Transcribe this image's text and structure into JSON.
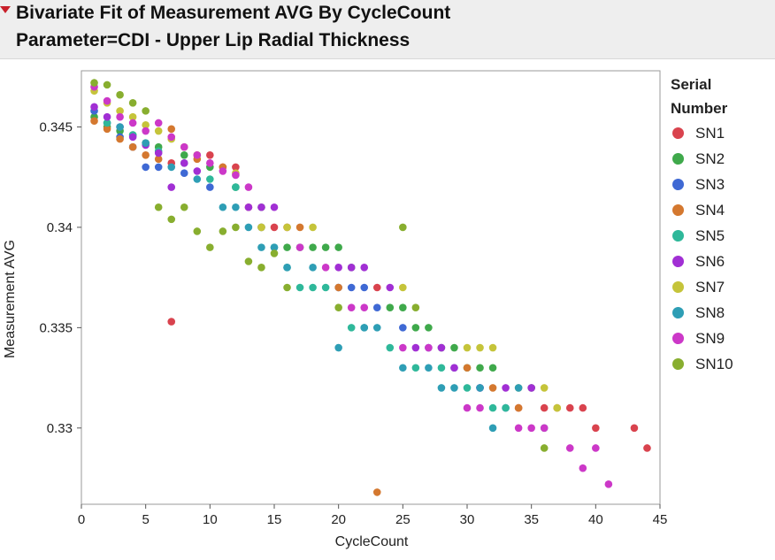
{
  "header": {
    "line1": "Bivariate Fit of Measurement AVG By CycleCount",
    "line2": "Parameter=CDI - Upper Lip Radial Thickness"
  },
  "legend": {
    "title_line1": "Serial",
    "title_line2": "Number",
    "placement": "right"
  },
  "chart_data": {
    "type": "scatter",
    "title": "Bivariate Fit of Measurement AVG By CycleCount",
    "subtitle": "Parameter=CDI - Upper Lip Radial Thickness",
    "xlabel": "CycleCount",
    "ylabel": "Measurement AVG",
    "xlim": [
      0,
      45
    ],
    "ylim": [
      0.3262,
      0.3478
    ],
    "xticks": [
      0,
      5,
      10,
      15,
      20,
      25,
      30,
      35,
      40,
      45
    ],
    "yticks": [
      0.33,
      0.335,
      0.34,
      0.345
    ],
    "ytick_labels": [
      "0.33",
      "0.335",
      "0.34",
      "0.345"
    ],
    "grid": false,
    "legend_placement": "right",
    "series": [
      {
        "name": "SN1",
        "color": "#d9434e",
        "points": [
          [
            7,
            0.3353
          ],
          [
            7,
            0.3432
          ],
          [
            9,
            0.3436
          ],
          [
            10,
            0.3436
          ],
          [
            11,
            0.343
          ],
          [
            12,
            0.343
          ],
          [
            14,
            0.34
          ],
          [
            15,
            0.34
          ],
          [
            16,
            0.34
          ],
          [
            23,
            0.337
          ],
          [
            34,
            0.331
          ],
          [
            36,
            0.331
          ],
          [
            38,
            0.331
          ],
          [
            39,
            0.331
          ],
          [
            40,
            0.33
          ],
          [
            43,
            0.33
          ],
          [
            44,
            0.329
          ]
        ]
      },
      {
        "name": "SN2",
        "color": "#3fa94b",
        "points": [
          [
            1,
            0.3455
          ],
          [
            2,
            0.345
          ],
          [
            3,
            0.3448
          ],
          [
            4,
            0.3446
          ],
          [
            5,
            0.3442
          ],
          [
            6,
            0.344
          ],
          [
            8,
            0.3436
          ],
          [
            10,
            0.343
          ],
          [
            12,
            0.342
          ],
          [
            14,
            0.341
          ],
          [
            16,
            0.339
          ],
          [
            17,
            0.339
          ],
          [
            18,
            0.339
          ],
          [
            19,
            0.339
          ],
          [
            20,
            0.339
          ],
          [
            21,
            0.338
          ],
          [
            24,
            0.336
          ],
          [
            25,
            0.336
          ],
          [
            26,
            0.335
          ],
          [
            27,
            0.335
          ],
          [
            28,
            0.334
          ],
          [
            29,
            0.334
          ],
          [
            30,
            0.333
          ],
          [
            31,
            0.333
          ],
          [
            32,
            0.333
          ],
          [
            35,
            0.332
          ]
        ]
      },
      {
        "name": "SN3",
        "color": "#3f69d4",
        "points": [
          [
            1,
            0.3458
          ],
          [
            2,
            0.3452
          ],
          [
            3,
            0.3445
          ],
          [
            4,
            0.344
          ],
          [
            5,
            0.343
          ],
          [
            6,
            0.343
          ],
          [
            8,
            0.3427
          ],
          [
            10,
            0.342
          ],
          [
            20,
            0.337
          ],
          [
            21,
            0.337
          ],
          [
            22,
            0.337
          ],
          [
            23,
            0.336
          ],
          [
            25,
            0.335
          ],
          [
            27,
            0.334
          ],
          [
            29,
            0.333
          ],
          [
            31,
            0.332
          ],
          [
            33,
            0.331
          ]
        ]
      },
      {
        "name": "SN4",
        "color": "#d4782f",
        "points": [
          [
            1,
            0.3453
          ],
          [
            2,
            0.3449
          ],
          [
            3,
            0.3444
          ],
          [
            4,
            0.344
          ],
          [
            5,
            0.3436
          ],
          [
            6,
            0.3434
          ],
          [
            7,
            0.3449
          ],
          [
            9,
            0.3434
          ],
          [
            11,
            0.343
          ],
          [
            13,
            0.341
          ],
          [
            17,
            0.34
          ],
          [
            20,
            0.337
          ],
          [
            23,
            0.3268
          ],
          [
            30,
            0.333
          ],
          [
            32,
            0.332
          ],
          [
            34,
            0.331
          ],
          [
            37,
            0.331
          ]
        ]
      },
      {
        "name": "SN5",
        "color": "#2fb89a",
        "points": [
          [
            2,
            0.3452
          ],
          [
            4,
            0.3446
          ],
          [
            6,
            0.3438
          ],
          [
            8,
            0.3432
          ],
          [
            10,
            0.3424
          ],
          [
            12,
            0.342
          ],
          [
            14,
            0.34
          ],
          [
            15,
            0.339
          ],
          [
            16,
            0.338
          ],
          [
            17,
            0.337
          ],
          [
            18,
            0.337
          ],
          [
            19,
            0.337
          ],
          [
            21,
            0.335
          ],
          [
            22,
            0.335
          ],
          [
            24,
            0.334
          ],
          [
            26,
            0.333
          ],
          [
            28,
            0.333
          ],
          [
            30,
            0.332
          ],
          [
            32,
            0.331
          ],
          [
            33,
            0.331
          ],
          [
            36,
            0.33
          ]
        ]
      },
      {
        "name": "SN6",
        "color": "#a12fd4",
        "points": [
          [
            1,
            0.346
          ],
          [
            2,
            0.3455
          ],
          [
            3,
            0.345
          ],
          [
            4,
            0.3445
          ],
          [
            5,
            0.3441
          ],
          [
            6,
            0.3437
          ],
          [
            7,
            0.342
          ],
          [
            8,
            0.3432
          ],
          [
            9,
            0.3428
          ],
          [
            13,
            0.341
          ],
          [
            14,
            0.341
          ],
          [
            15,
            0.341
          ],
          [
            20,
            0.338
          ],
          [
            21,
            0.338
          ],
          [
            22,
            0.338
          ],
          [
            24,
            0.337
          ],
          [
            26,
            0.334
          ],
          [
            28,
            0.334
          ],
          [
            29,
            0.333
          ],
          [
            31,
            0.332
          ],
          [
            33,
            0.332
          ],
          [
            35,
            0.332
          ]
        ]
      },
      {
        "name": "SN7",
        "color": "#c5c43a",
        "points": [
          [
            1,
            0.3468
          ],
          [
            2,
            0.3462
          ],
          [
            3,
            0.3458
          ],
          [
            4,
            0.3455
          ],
          [
            5,
            0.3451
          ],
          [
            6,
            0.3448
          ],
          [
            7,
            0.3444
          ],
          [
            8,
            0.344
          ],
          [
            9,
            0.3436
          ],
          [
            12,
            0.3427
          ],
          [
            14,
            0.34
          ],
          [
            16,
            0.34
          ],
          [
            18,
            0.34
          ],
          [
            25,
            0.337
          ],
          [
            30,
            0.334
          ],
          [
            31,
            0.334
          ],
          [
            32,
            0.334
          ],
          [
            34,
            0.332
          ],
          [
            36,
            0.332
          ],
          [
            37,
            0.331
          ]
        ]
      },
      {
        "name": "SN8",
        "color": "#2e9eb5",
        "points": [
          [
            3,
            0.345
          ],
          [
            5,
            0.3442
          ],
          [
            7,
            0.343
          ],
          [
            9,
            0.3424
          ],
          [
            11,
            0.341
          ],
          [
            12,
            0.341
          ],
          [
            13,
            0.34
          ],
          [
            14,
            0.339
          ],
          [
            15,
            0.339
          ],
          [
            16,
            0.338
          ],
          [
            18,
            0.338
          ],
          [
            20,
            0.334
          ],
          [
            22,
            0.335
          ],
          [
            23,
            0.335
          ],
          [
            25,
            0.333
          ],
          [
            27,
            0.333
          ],
          [
            28,
            0.332
          ],
          [
            29,
            0.332
          ],
          [
            31,
            0.332
          ],
          [
            32,
            0.33
          ],
          [
            34,
            0.332
          ]
        ]
      },
      {
        "name": "SN9",
        "color": "#cc38c8",
        "points": [
          [
            1,
            0.347
          ],
          [
            2,
            0.3463
          ],
          [
            3,
            0.3455
          ],
          [
            4,
            0.3452
          ],
          [
            5,
            0.3448
          ],
          [
            6,
            0.3452
          ],
          [
            7,
            0.3445
          ],
          [
            8,
            0.344
          ],
          [
            9,
            0.3436
          ],
          [
            10,
            0.3432
          ],
          [
            11,
            0.3428
          ],
          [
            12,
            0.3426
          ],
          [
            13,
            0.342
          ],
          [
            17,
            0.339
          ],
          [
            19,
            0.338
          ],
          [
            21,
            0.336
          ],
          [
            22,
            0.336
          ],
          [
            25,
            0.334
          ],
          [
            27,
            0.334
          ],
          [
            30,
            0.331
          ],
          [
            31,
            0.331
          ],
          [
            34,
            0.33
          ],
          [
            35,
            0.33
          ],
          [
            36,
            0.33
          ],
          [
            38,
            0.329
          ],
          [
            39,
            0.328
          ],
          [
            40,
            0.329
          ],
          [
            41,
            0.3272
          ]
        ]
      },
      {
        "name": "SN10",
        "color": "#88ae2f",
        "points": [
          [
            1,
            0.3472
          ],
          [
            2,
            0.3471
          ],
          [
            3,
            0.3466
          ],
          [
            4,
            0.3462
          ],
          [
            5,
            0.3458
          ],
          [
            6,
            0.341
          ],
          [
            7,
            0.3404
          ],
          [
            8,
            0.341
          ],
          [
            9,
            0.3398
          ],
          [
            10,
            0.339
          ],
          [
            11,
            0.3398
          ],
          [
            12,
            0.34
          ],
          [
            13,
            0.3383
          ],
          [
            14,
            0.338
          ],
          [
            15,
            0.3387
          ],
          [
            16,
            0.337
          ],
          [
            20,
            0.336
          ],
          [
            25,
            0.34
          ],
          [
            26,
            0.336
          ],
          [
            36,
            0.329
          ]
        ]
      }
    ]
  }
}
